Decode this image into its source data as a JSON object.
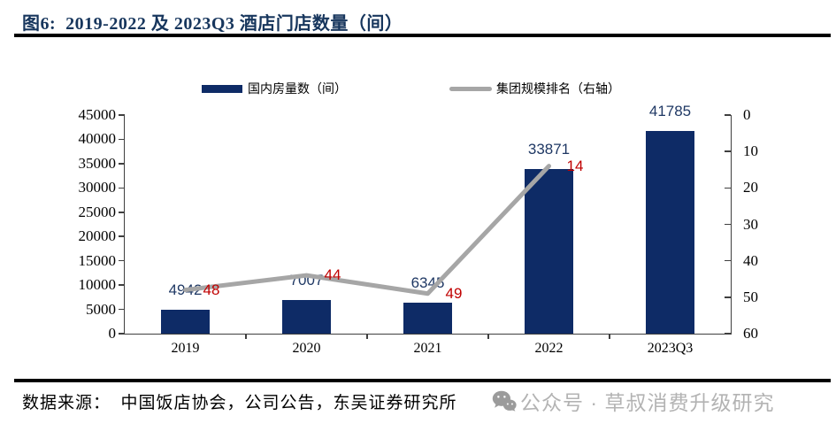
{
  "header": {
    "title": "图6:  2019-2022 及 2023Q3 酒店门店数量（间）"
  },
  "chart_data": {
    "type": "bar",
    "title": "2019-2022 及 2023Q3 酒店门店数量（间）",
    "categories": [
      "2019",
      "2020",
      "2021",
      "2022",
      "2023Q3"
    ],
    "series": [
      {
        "name": "国内房量数（间）",
        "type": "bar",
        "axis": "left",
        "values": [
          4942,
          7007,
          6345,
          33871,
          41785
        ]
      },
      {
        "name": "集团规模排名（右轴）",
        "type": "line",
        "axis": "right",
        "values": [
          48,
          44,
          49,
          14,
          null
        ]
      }
    ],
    "left_axis": {
      "min": 0,
      "max": 45000,
      "step": 5000,
      "ticks": [
        45000,
        40000,
        35000,
        30000,
        25000,
        20000,
        15000,
        10000,
        5000,
        0
      ]
    },
    "right_axis": {
      "min": 0,
      "max": 60,
      "step": 10,
      "inverted": true,
      "ticks": [
        0,
        10,
        20,
        30,
        40,
        50,
        60
      ]
    },
    "grid": false,
    "legend_position": "top",
    "colors": {
      "bar": "#0e2b66",
      "line": "#a6a6a6",
      "value_label": "#1f3864",
      "rank_label": "#c00000"
    }
  },
  "footer": {
    "source": "数据来源：  中国饭店协会，公司公告，东吴证券研究所",
    "watermark": "公众号 · 草叔消费升级研究",
    "watermark_icon": "wechat-icon"
  }
}
